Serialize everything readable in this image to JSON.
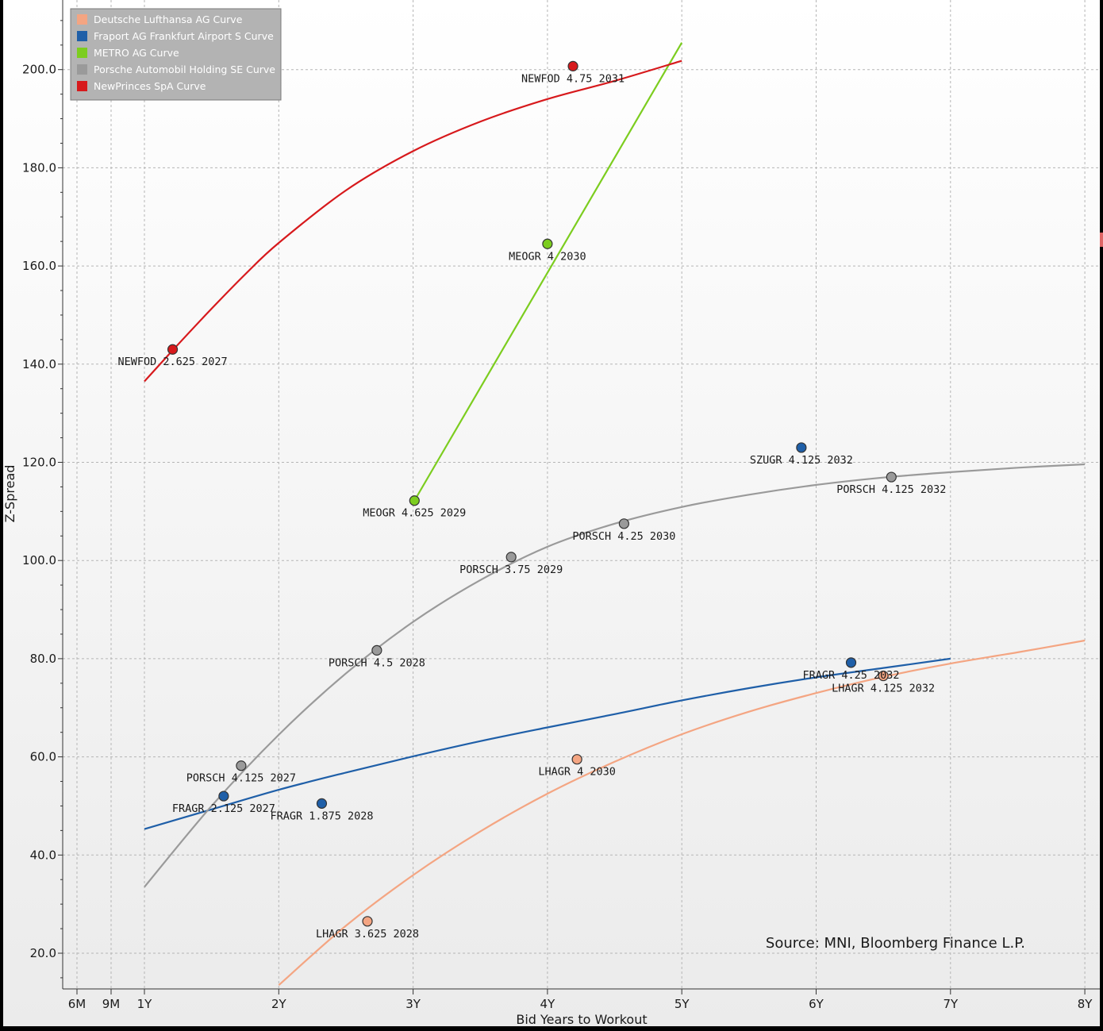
{
  "chart_data": {
    "type": "scatter",
    "title": "",
    "xlabel": "Bid Years to Workout",
    "ylabel": "Z-Spread",
    "source": "Source: MNI, Bloomberg Finance L.P.",
    "xlim": [
      0.5,
      8.0
    ],
    "ylim": [
      12,
      214
    ],
    "grid": true,
    "legend_position": "top-left",
    "x_ticks": [
      {
        "value": 0.5,
        "label": "6M"
      },
      {
        "value": 0.75,
        "label": "9M"
      },
      {
        "value": 1,
        "label": "1Y"
      },
      {
        "value": 2,
        "label": "2Y"
      },
      {
        "value": 3,
        "label": "3Y"
      },
      {
        "value": 4,
        "label": "4Y"
      },
      {
        "value": 5,
        "label": "5Y"
      },
      {
        "value": 6,
        "label": "6Y"
      },
      {
        "value": 7,
        "label": "7Y"
      },
      {
        "value": 8,
        "label": "8Y"
      }
    ],
    "y_ticks": [
      {
        "value": 20,
        "label": "20.0"
      },
      {
        "value": 40,
        "label": "40.0"
      },
      {
        "value": 60,
        "label": "60.0"
      },
      {
        "value": 80,
        "label": "80.0"
      },
      {
        "value": 100,
        "label": "100.0"
      },
      {
        "value": 120,
        "label": "120.0"
      },
      {
        "value": 140,
        "label": "140.0"
      },
      {
        "value": 160,
        "label": "160.0"
      },
      {
        "value": 180,
        "label": "180.0"
      },
      {
        "value": 200,
        "label": "200.0"
      }
    ],
    "series": [
      {
        "name": "Deutsche Lufthansa AG Curve",
        "color": "#f4a582",
        "points": [
          {
            "label": "LHAGR 3.625 2028",
            "x": 2.66,
            "y": 26.5
          },
          {
            "label": "LHAGR 4 2030",
            "x": 4.22,
            "y": 59.5
          },
          {
            "label": "LHAGR 4.125 2032",
            "x": 6.5,
            "y": 76.5
          }
        ],
        "curve": [
          [
            2.0,
            13.5
          ],
          [
            2.5,
            25.6
          ],
          [
            3.0,
            35.9
          ],
          [
            3.5,
            44.8
          ],
          [
            4.0,
            52.5
          ],
          [
            4.5,
            59.0
          ],
          [
            5.0,
            64.6
          ],
          [
            5.5,
            69.2
          ],
          [
            6.0,
            73.0
          ],
          [
            6.5,
            76.3
          ],
          [
            7.0,
            79.0
          ],
          [
            7.5,
            81.3
          ],
          [
            8.0,
            83.7
          ]
        ]
      },
      {
        "name": "Fraport AG Frankfurt Airport S Curve",
        "color": "#1f5fa8",
        "points": [
          {
            "label": "FRAGR 2.125 2027",
            "x": 1.59,
            "y": 52.0
          },
          {
            "label": "FRAGR 1.875 2028",
            "x": 2.32,
            "y": 50.5
          },
          {
            "label": "SZUGR 4.125 2032",
            "x": 5.89,
            "y": 123.0
          },
          {
            "label": "FRAGR 4.25 2032",
            "x": 6.26,
            "y": 79.2
          }
        ],
        "curve": [
          [
            1.0,
            45.3
          ],
          [
            1.5,
            49.3
          ],
          [
            2.0,
            53.3
          ],
          [
            2.5,
            56.8
          ],
          [
            3.0,
            60.1
          ],
          [
            3.5,
            63.2
          ],
          [
            4.0,
            66.0
          ],
          [
            4.5,
            68.7
          ],
          [
            5.0,
            71.5
          ],
          [
            5.5,
            74.0
          ],
          [
            6.0,
            76.2
          ],
          [
            6.5,
            78.1
          ],
          [
            7.0,
            80.0
          ]
        ]
      },
      {
        "name": "METRO AG Curve",
        "color": "#7ccd1f",
        "points": [
          {
            "label": "MEOGR 4.625 2029",
            "x": 3.01,
            "y": 112.2
          },
          {
            "label": "MEOGR 4 2030",
            "x": 4.0,
            "y": 164.5
          }
        ],
        "curve": [
          [
            3.01,
            112.2
          ],
          [
            5.0,
            205.5
          ]
        ]
      },
      {
        "name": "Porsche Automobil Holding SE Curve",
        "color": "#9a9a9a",
        "points": [
          {
            "label": "PORSCH 4.125 2027",
            "x": 1.72,
            "y": 58.2
          },
          {
            "label": "PORSCH 4.5 2028",
            "x": 2.73,
            "y": 81.7
          },
          {
            "label": "PORSCH 3.75 2029",
            "x": 3.73,
            "y": 100.7
          },
          {
            "label": "PORSCH 4.25 2030",
            "x": 4.57,
            "y": 107.5
          },
          {
            "label": "PORSCH 4.125 2032",
            "x": 6.56,
            "y": 117.0
          }
        ],
        "curve": [
          [
            1.0,
            33.5
          ],
          [
            1.5,
            50.0
          ],
          [
            2.0,
            64.5
          ],
          [
            2.5,
            77.0
          ],
          [
            3.0,
            87.5
          ],
          [
            3.5,
            96.0
          ],
          [
            4.0,
            102.8
          ],
          [
            4.5,
            107.5
          ],
          [
            5.0,
            110.9
          ],
          [
            5.5,
            113.4
          ],
          [
            6.0,
            115.4
          ],
          [
            6.5,
            116.9
          ],
          [
            7.0,
            118.0
          ],
          [
            7.5,
            118.9
          ],
          [
            8.0,
            119.6
          ]
        ]
      },
      {
        "name": "NewPrinces SpA Curve",
        "color": "#d7191c",
        "points": [
          {
            "label": "NEWFOD 2.625 2027",
            "x": 1.21,
            "y": 143.0
          },
          {
            "label": "NEWFOD 4.75 2031",
            "x": 4.19,
            "y": 200.7
          }
        ],
        "curve": [
          [
            1.0,
            136.5
          ],
          [
            1.25,
            144.0
          ],
          [
            1.5,
            151.3
          ],
          [
            1.75,
            158.3
          ],
          [
            2.0,
            164.7
          ],
          [
            2.5,
            175.4
          ],
          [
            3.0,
            183.4
          ],
          [
            3.5,
            189.4
          ],
          [
            4.0,
            194.0
          ],
          [
            4.5,
            197.7
          ],
          [
            5.0,
            201.8
          ]
        ]
      }
    ]
  }
}
